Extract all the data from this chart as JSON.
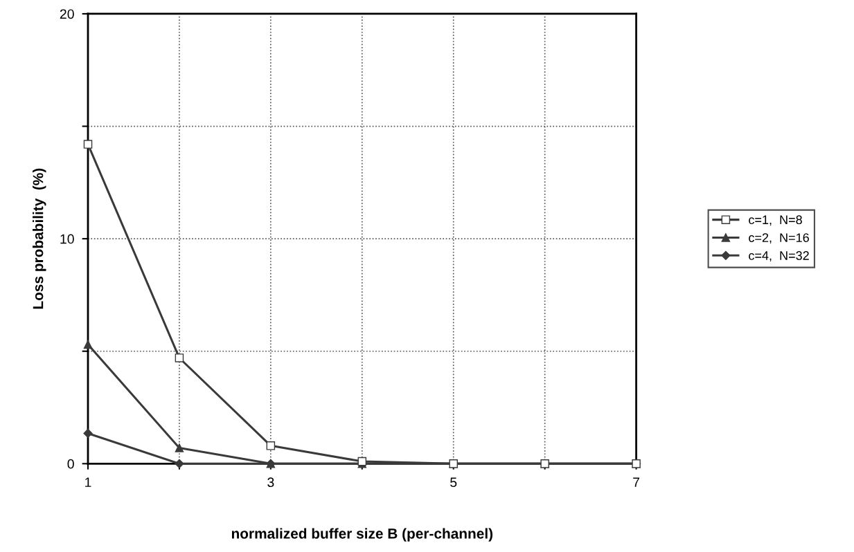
{
  "chart_data": {
    "type": "line",
    "xlabel": "normalized buffer size B (per-channel)",
    "ylabel": "Loss probability  (%)",
    "x": [
      1,
      2,
      3,
      4,
      5,
      6,
      7
    ],
    "series": [
      {
        "name": "c=1,  N=8",
        "color": "#3a3a3a",
        "marker": "square",
        "values": [
          14.2,
          4.7,
          0.8,
          0.1,
          0,
          0,
          0
        ]
      },
      {
        "name": "c=2,  N=16",
        "color": "#3a3a3a",
        "marker": "triangle",
        "values": [
          5.3,
          0.7,
          0,
          0,
          0,
          0,
          0
        ]
      },
      {
        "name": "c=4,  N=32",
        "color": "#3a3a3a",
        "marker": "diamond",
        "values": [
          1.35,
          0,
          0,
          0,
          0,
          0,
          0
        ]
      }
    ],
    "xlim": [
      1,
      7
    ],
    "xticks": [
      1,
      {
        "value": 2,
        "label": null
      },
      3,
      {
        "value": 4,
        "label": null
      },
      5,
      {
        "value": 6,
        "label": null
      },
      7
    ],
    "ylim": [
      0,
      20
    ],
    "yticks": [
      0,
      {
        "value": 5,
        "label": null
      },
      10,
      {
        "value": 15,
        "label": null
      },
      20
    ],
    "grid": true,
    "line_style": "solid",
    "legend": "right"
  }
}
